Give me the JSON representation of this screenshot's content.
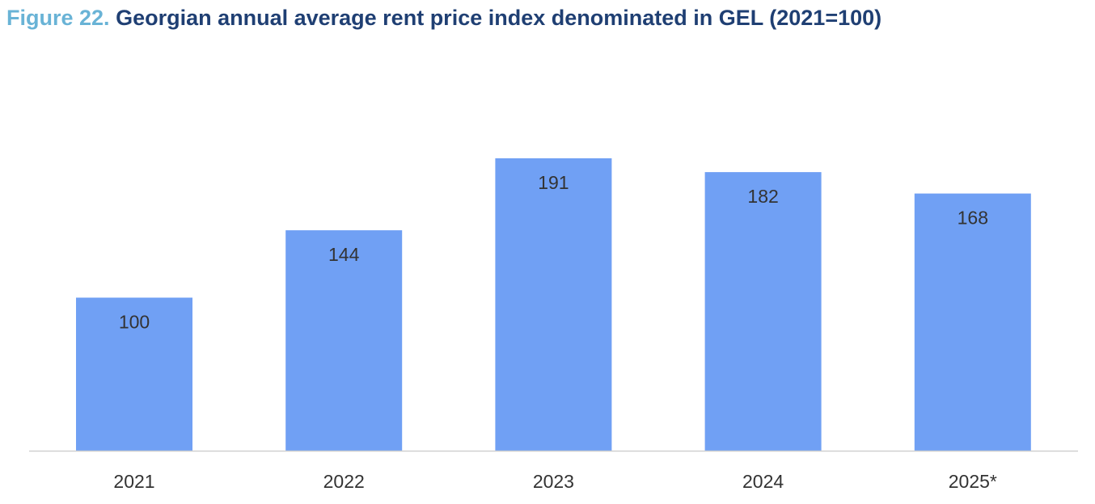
{
  "title": {
    "label": "Figure 22.",
    "text": "Georgian annual average rent price index denominated in GEL (2021=100)"
  },
  "colors": {
    "bar": "#70a0f4",
    "axis": "#d0d0d0",
    "label_text": "#333333",
    "tick_text": "#333333",
    "title_label": "#69b3d6",
    "title_text": "#1f3f73"
  },
  "chart_data": {
    "type": "bar",
    "categories": [
      "2021",
      "2022",
      "2023",
      "2024",
      "2025*"
    ],
    "values": [
      100,
      144,
      191,
      182,
      168
    ],
    "title": "Georgian annual average rent price index denominated in GEL (2021=100)",
    "xlabel": "",
    "ylabel": "",
    "ylim": [
      0,
      191
    ],
    "grid": false,
    "legend": "none",
    "data_labels": true
  }
}
